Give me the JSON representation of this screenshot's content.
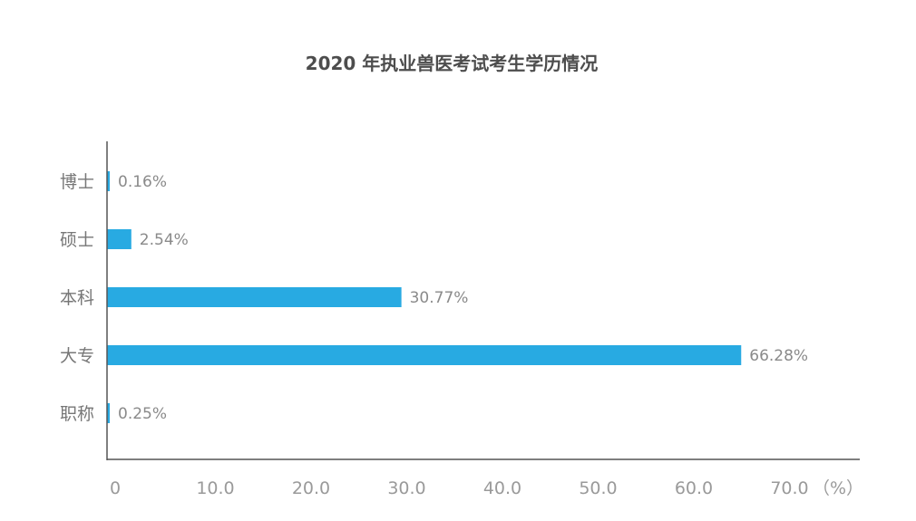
{
  "chart_data": {
    "type": "bar",
    "orientation": "horizontal",
    "title": "2020 年执业兽医考试考生学历情况",
    "categories": [
      "博士",
      "硕士",
      "本科",
      "大专",
      "职称"
    ],
    "values": [
      0.16,
      2.54,
      30.77,
      66.28,
      0.25
    ],
    "value_labels": [
      "0.16%",
      "2.54%",
      "30.77%",
      "66.28%",
      "0.25%"
    ],
    "xlabel": "（%）",
    "ylabel": "",
    "xlim": [
      0,
      70
    ],
    "x_ticks": [
      0,
      10,
      20,
      30,
      40,
      50,
      60,
      70
    ],
    "x_tick_labels": [
      "0",
      "10.0",
      "20.0",
      "30.0",
      "40.0",
      "50.0",
      "60.0",
      "70.0"
    ],
    "grid": false,
    "legend": "none",
    "colors": {
      "bar": "#28aae2"
    }
  }
}
